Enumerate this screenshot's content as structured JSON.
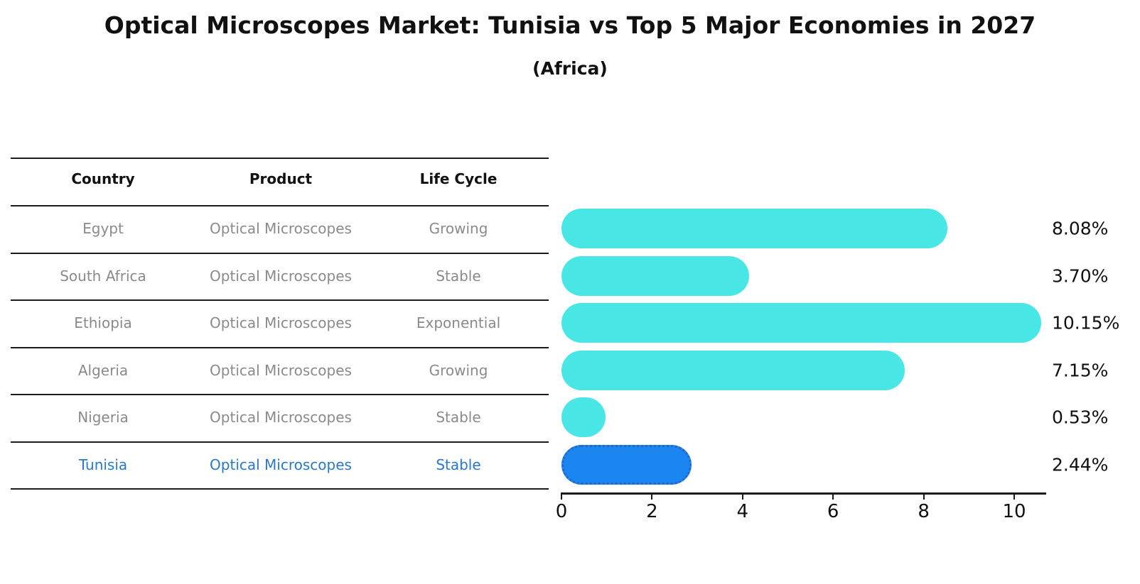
{
  "title": "Optical Microscopes Market: Tunisia vs Top 5 Major Economies in 2027",
  "subtitle": "(Africa)",
  "table": {
    "headers": [
      "Country",
      "Product",
      "Life Cycle"
    ],
    "rows": [
      {
        "country": "Egypt",
        "product": "Optical Microscopes",
        "life_cycle": "Growing",
        "highlight": false
      },
      {
        "country": "South Africa",
        "product": "Optical Microscopes",
        "life_cycle": "Stable",
        "highlight": false
      },
      {
        "country": "Ethiopia",
        "product": "Optical Microscopes",
        "life_cycle": "Exponential",
        "highlight": false
      },
      {
        "country": "Algeria",
        "product": "Optical Microscopes",
        "life_cycle": "Growing",
        "highlight": false
      },
      {
        "country": "Nigeria",
        "product": "Optical Microscopes",
        "life_cycle": "Stable",
        "highlight": false
      },
      {
        "country": "Tunisia",
        "product": "Optical Microscopes",
        "life_cycle": "Stable",
        "highlight": true
      }
    ]
  },
  "chart_data": {
    "type": "bar",
    "orientation": "horizontal",
    "title": "Optical Microscopes Market: Tunisia vs Top 5 Major Economies in 2027 (Africa)",
    "categories": [
      "Egypt",
      "South Africa",
      "Ethiopia",
      "Algeria",
      "Nigeria",
      "Tunisia"
    ],
    "values": [
      8.08,
      3.7,
      10.15,
      7.15,
      0.53,
      2.44
    ],
    "value_labels": [
      "8.08%",
      "3.70%",
      "10.15%",
      "7.15%",
      "0.53%",
      "2.44%"
    ],
    "xlabel": "",
    "ylabel": "",
    "xticks": [
      0,
      2,
      4,
      6,
      8,
      10
    ],
    "xlim": [
      0,
      10.7
    ],
    "grid": false,
    "legend": false,
    "highlight_category": "Tunisia"
  },
  "colors": {
    "bar_default": "#49E6E6",
    "bar_highlight": "#1B86F0",
    "bar_highlight_border": "#2566C8",
    "highlight_text": "#2B78C8",
    "cell_text": "#8A8A8A",
    "header_text": "#111111",
    "axis": "#1A1A1A",
    "background": "#FFFFFF"
  }
}
